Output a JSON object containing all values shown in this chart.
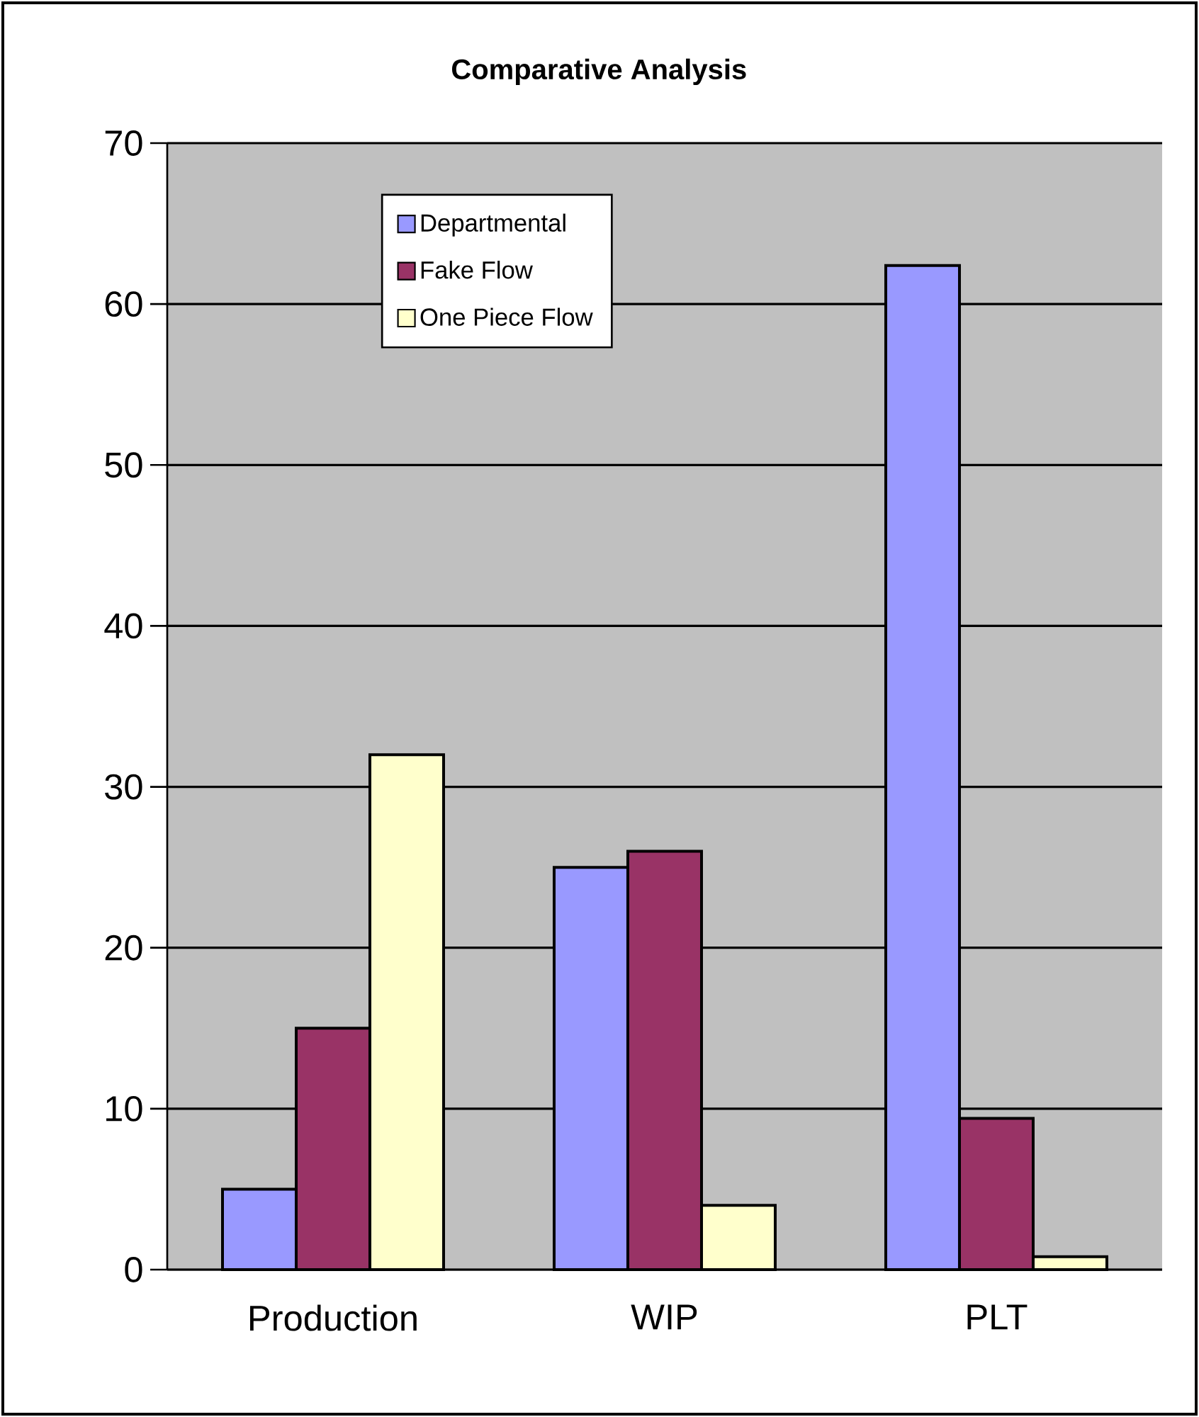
{
  "chart_data": {
    "type": "bar",
    "title": "Comparative Analysis",
    "categories": [
      "Production",
      "WIP",
      "PLT"
    ],
    "series": [
      {
        "name": "Departmental",
        "color": "#9999ff",
        "values": [
          5,
          25,
          62.4
        ]
      },
      {
        "name": "Fake Flow",
        "color": "#993366",
        "values": [
          15,
          26,
          9.4
        ]
      },
      {
        "name": "One Piece Flow",
        "color": "#ffffcc",
        "values": [
          32,
          4,
          0.8
        ]
      }
    ],
    "ylim": [
      0,
      70
    ],
    "yticks": [
      0,
      10,
      20,
      30,
      40,
      50,
      60,
      70
    ],
    "grid": "y",
    "legend": "top left"
  }
}
